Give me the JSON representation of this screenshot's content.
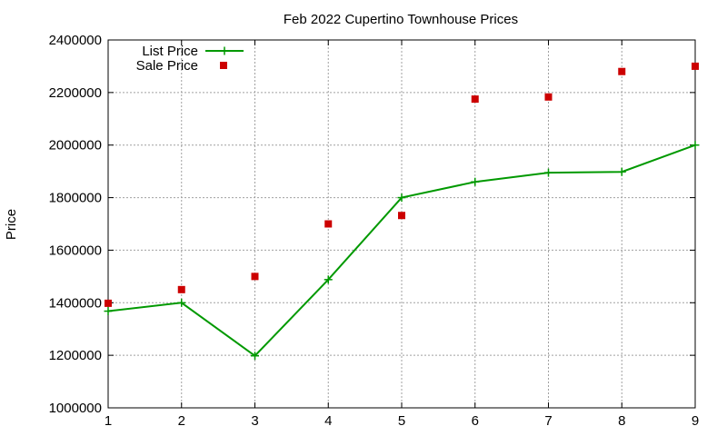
{
  "chart_data": {
    "type": "line",
    "title": "Feb 2022 Cupertino Townhouse Prices",
    "xlabel": "",
    "ylabel": "Price",
    "x": [
      1,
      2,
      3,
      4,
      5,
      6,
      7,
      8,
      9
    ],
    "xlim": [
      1,
      9
    ],
    "ylim": [
      1000000,
      2400000
    ],
    "xticks": [
      "1",
      "2",
      "3",
      "4",
      "5",
      "6",
      "7",
      "8",
      "9"
    ],
    "yticks": [
      "1000000",
      "1200000",
      "1400000",
      "1600000",
      "1800000",
      "2000000",
      "2200000",
      "2400000"
    ],
    "grid": true,
    "legend_position": "top-left",
    "series": [
      {
        "name": "List Price",
        "style": "line-with-plus-markers",
        "color": "#009900",
        "values": [
          1368000,
          1400000,
          1198000,
          1488000,
          1800000,
          1860000,
          1895000,
          1898000,
          2000000
        ]
      },
      {
        "name": "Sale Price",
        "style": "square-markers",
        "color": "#cc0000",
        "values": [
          1398000,
          1450000,
          1500000,
          1700000,
          1732000,
          2175000,
          2183000,
          2280000,
          2300000
        ]
      }
    ]
  }
}
